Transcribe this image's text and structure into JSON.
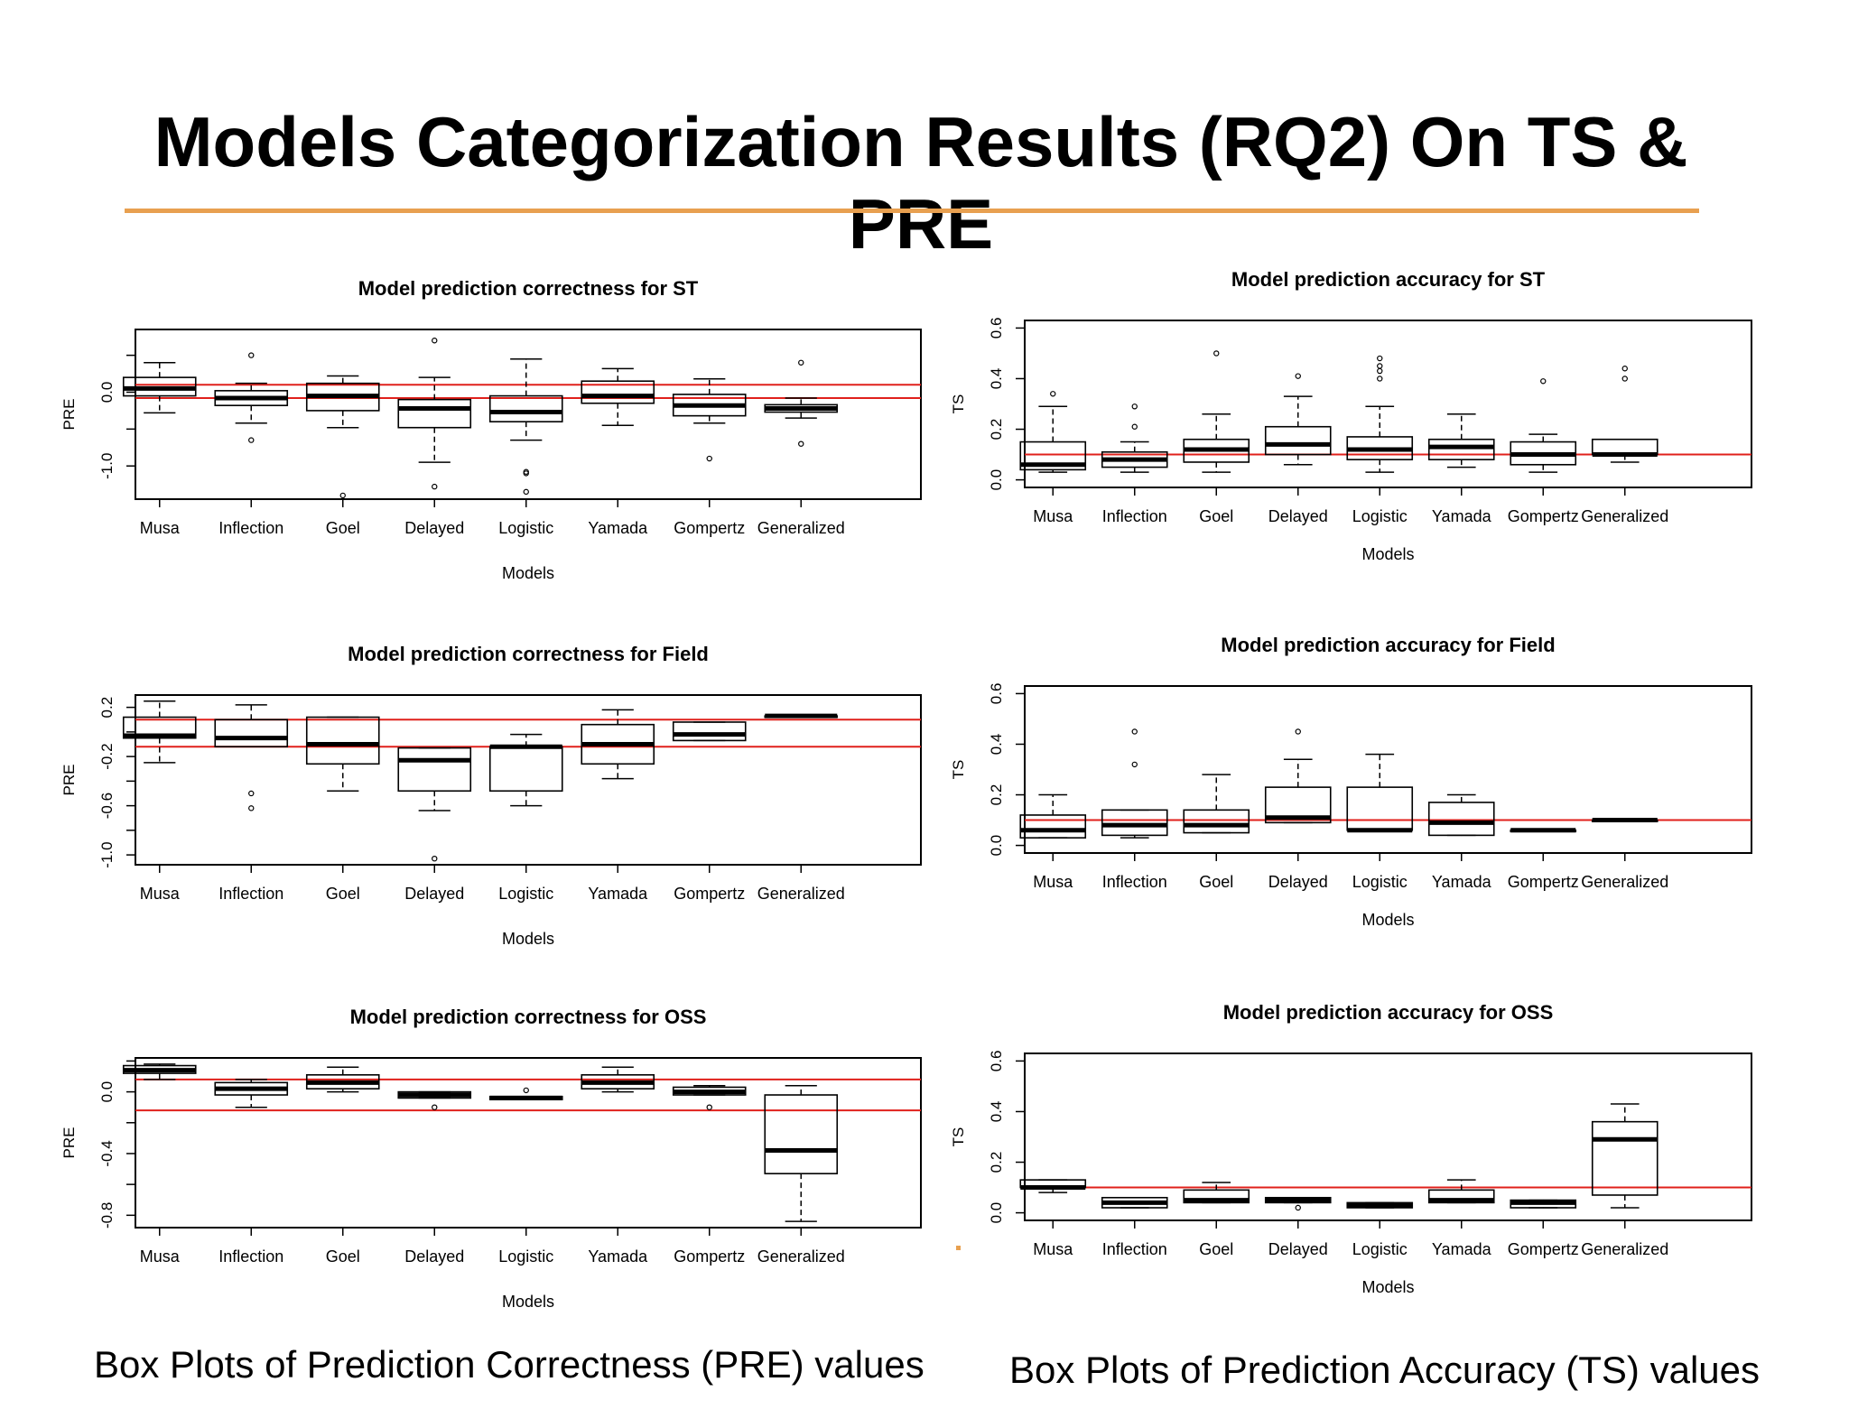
{
  "slide_title": "Models Categorization Results (RQ2) On TS & PRE",
  "captions": {
    "left": "Box Plots of Prediction Correctness (PRE) values",
    "right": "Box Plots of Prediction Accuracy (TS) values"
  },
  "colors": {
    "title_rule": "#E8A050",
    "reference_lines": "#E0201B",
    "boxes": "#000000"
  },
  "chart_data": [
    {
      "type": "boxplot",
      "title": "Model prediction correctness for ST",
      "xlabel": "Models",
      "ylabel": "PRE",
      "ylim": [
        -1.45,
        0.85
      ],
      "yticks": [
        -1.0,
        0.0
      ],
      "ytick_labels": [
        "-1.0",
        "0.0"
      ],
      "extra_ticks": [
        -0.5,
        0.5
      ],
      "hlines": [
        0.1,
        -0.08
      ],
      "categories": [
        "Musa",
        "Inflection",
        "Goel",
        "Delayed",
        "Logistic",
        "Yamada",
        "Gompertz",
        "Generalized"
      ],
      "boxes": [
        {
          "whislo": -0.28,
          "q1": -0.05,
          "med": 0.05,
          "q3": 0.2,
          "whishi": 0.4,
          "outliers": []
        },
        {
          "whislo": -0.42,
          "q1": -0.18,
          "med": -0.08,
          "q3": 0.02,
          "whishi": 0.12,
          "outliers": [
            0.5,
            -0.65
          ]
        },
        {
          "whislo": -0.48,
          "q1": -0.25,
          "med": -0.05,
          "q3": 0.12,
          "whishi": 0.22,
          "outliers": [
            -1.4
          ]
        },
        {
          "whislo": -0.95,
          "q1": -0.48,
          "med": -0.22,
          "q3": -0.1,
          "whishi": 0.2,
          "outliers": [
            0.7,
            -1.28
          ]
        },
        {
          "whislo": -0.65,
          "q1": -0.4,
          "med": -0.27,
          "q3": -0.05,
          "whishi": 0.45,
          "outliers": [
            -1.08,
            -1.1,
            -1.35
          ]
        },
        {
          "whislo": -0.45,
          "q1": -0.15,
          "med": -0.05,
          "q3": 0.15,
          "whishi": 0.32,
          "outliers": []
        },
        {
          "whislo": -0.42,
          "q1": -0.32,
          "med": -0.18,
          "q3": -0.03,
          "whishi": 0.18,
          "outliers": [
            -0.9
          ]
        },
        {
          "whislo": -0.35,
          "q1": -0.27,
          "med": -0.22,
          "q3": -0.17,
          "whishi": -0.08,
          "outliers": [
            0.4,
            -0.7
          ]
        }
      ]
    },
    {
      "type": "boxplot",
      "title": "Model prediction correctness for Field",
      "xlabel": "Models",
      "ylabel": "PRE",
      "ylim": [
        -1.08,
        0.3
      ],
      "yticks": [
        -1.0,
        -0.6,
        -0.2,
        0.2
      ],
      "ytick_labels": [
        "-1.0",
        "-0.6",
        "-0.2",
        "0.2"
      ],
      "extra_ticks": [
        -0.8,
        -0.4,
        0.0
      ],
      "hlines": [
        0.1,
        -0.12
      ],
      "categories": [
        "Musa",
        "Inflection",
        "Goel",
        "Delayed",
        "Logistic",
        "Yamada",
        "Gompertz",
        "Generalized"
      ],
      "boxes": [
        {
          "whislo": -0.25,
          "q1": -0.05,
          "med": -0.03,
          "q3": 0.12,
          "whishi": 0.25,
          "outliers": []
        },
        {
          "whislo": -0.12,
          "q1": -0.12,
          "med": -0.05,
          "q3": 0.1,
          "whishi": 0.22,
          "outliers": [
            -0.5,
            -0.62
          ]
        },
        {
          "whislo": -0.48,
          "q1": -0.26,
          "med": -0.1,
          "q3": 0.12,
          "whishi": 0.12,
          "outliers": []
        },
        {
          "whislo": -0.64,
          "q1": -0.48,
          "med": -0.23,
          "q3": -0.13,
          "whishi": -0.13,
          "outliers": [
            -1.03
          ]
        },
        {
          "whislo": -0.6,
          "q1": -0.48,
          "med": -0.12,
          "q3": -0.12,
          "whishi": -0.02,
          "outliers": []
        },
        {
          "whislo": -0.38,
          "q1": -0.26,
          "med": -0.1,
          "q3": 0.06,
          "whishi": 0.18,
          "outliers": []
        },
        {
          "whislo": -0.07,
          "q1": -0.07,
          "med": -0.02,
          "q3": 0.08,
          "whishi": 0.08,
          "outliers": []
        },
        {
          "whislo": 0.13,
          "q1": 0.13,
          "med": 0.13,
          "q3": 0.13,
          "whishi": 0.13,
          "outliers": []
        }
      ]
    },
    {
      "type": "boxplot",
      "title": "Model prediction correctness for OSS",
      "xlabel": "Models",
      "ylabel": "PRE",
      "ylim": [
        -0.88,
        0.22
      ],
      "yticks": [
        -0.8,
        -0.4,
        0.0
      ],
      "ytick_labels": [
        "-0.8",
        "-0.4",
        "0.0"
      ],
      "extra_ticks": [
        -0.6,
        -0.2,
        0.2
      ],
      "hlines": [
        0.08,
        -0.12
      ],
      "categories": [
        "Musa",
        "Inflection",
        "Goel",
        "Delayed",
        "Logistic",
        "Yamada",
        "Gompertz",
        "Generalized"
      ],
      "boxes": [
        {
          "whislo": 0.08,
          "q1": 0.12,
          "med": 0.14,
          "q3": 0.17,
          "whishi": 0.18,
          "outliers": []
        },
        {
          "whislo": -0.1,
          "q1": -0.02,
          "med": 0.02,
          "q3": 0.06,
          "whishi": 0.08,
          "outliers": []
        },
        {
          "whislo": 0.0,
          "q1": 0.02,
          "med": 0.06,
          "q3": 0.11,
          "whishi": 0.16,
          "outliers": []
        },
        {
          "whislo": -0.04,
          "q1": -0.04,
          "med": -0.02,
          "q3": 0.0,
          "whishi": 0.0,
          "outliers": [
            -0.1
          ]
        },
        {
          "whislo": -0.05,
          "q1": -0.05,
          "med": -0.04,
          "q3": -0.03,
          "whishi": -0.03,
          "outliers": [
            0.01
          ]
        },
        {
          "whislo": 0.0,
          "q1": 0.02,
          "med": 0.06,
          "q3": 0.11,
          "whishi": 0.16,
          "outliers": []
        },
        {
          "whislo": -0.02,
          "q1": -0.02,
          "med": 0.0,
          "q3": 0.03,
          "whishi": 0.04,
          "outliers": [
            -0.1
          ]
        },
        {
          "whislo": -0.84,
          "q1": -0.53,
          "med": -0.38,
          "q3": -0.02,
          "whishi": 0.04,
          "outliers": []
        }
      ]
    },
    {
      "type": "boxplot",
      "title": "Model prediction accuracy for ST",
      "xlabel": "Models",
      "ylabel": "TS",
      "ylim": [
        -0.03,
        0.63
      ],
      "yticks": [
        0.0,
        0.2,
        0.4,
        0.6
      ],
      "ytick_labels": [
        "0.0",
        "0.2",
        "0.4",
        "0.6"
      ],
      "extra_ticks": [],
      "hlines": [
        0.1
      ],
      "categories": [
        "Musa",
        "Inflection",
        "Goel",
        "Delayed",
        "Logistic",
        "Yamada",
        "Gompertz",
        "Generalized"
      ],
      "boxes": [
        {
          "whislo": 0.03,
          "q1": 0.04,
          "med": 0.06,
          "q3": 0.15,
          "whishi": 0.29,
          "outliers": [
            0.34
          ]
        },
        {
          "whislo": 0.03,
          "q1": 0.05,
          "med": 0.08,
          "q3": 0.11,
          "whishi": 0.15,
          "outliers": [
            0.21,
            0.29
          ]
        },
        {
          "whislo": 0.03,
          "q1": 0.07,
          "med": 0.12,
          "q3": 0.16,
          "whishi": 0.26,
          "outliers": [
            0.5
          ]
        },
        {
          "whislo": 0.06,
          "q1": 0.1,
          "med": 0.14,
          "q3": 0.21,
          "whishi": 0.33,
          "outliers": [
            0.41
          ]
        },
        {
          "whislo": 0.03,
          "q1": 0.08,
          "med": 0.12,
          "q3": 0.17,
          "whishi": 0.29,
          "outliers": [
            0.4,
            0.43,
            0.45,
            0.48
          ]
        },
        {
          "whislo": 0.05,
          "q1": 0.08,
          "med": 0.13,
          "q3": 0.16,
          "whishi": 0.26,
          "outliers": []
        },
        {
          "whislo": 0.03,
          "q1": 0.06,
          "med": 0.1,
          "q3": 0.15,
          "whishi": 0.18,
          "outliers": [
            0.39
          ]
        },
        {
          "whislo": 0.07,
          "q1": 0.1,
          "med": 0.1,
          "q3": 0.16,
          "whishi": 0.16,
          "outliers": [
            0.4,
            0.44
          ]
        }
      ]
    },
    {
      "type": "boxplot",
      "title": "Model prediction accuracy for Field",
      "xlabel": "Models",
      "ylabel": "TS",
      "ylim": [
        -0.03,
        0.63
      ],
      "yticks": [
        0.0,
        0.2,
        0.4,
        0.6
      ],
      "ytick_labels": [
        "0.0",
        "0.2",
        "0.4",
        "0.6"
      ],
      "extra_ticks": [],
      "hlines": [
        0.1
      ],
      "categories": [
        "Musa",
        "Inflection",
        "Goel",
        "Delayed",
        "Logistic",
        "Yamada",
        "Gompertz",
        "Generalized"
      ],
      "boxes": [
        {
          "whislo": 0.03,
          "q1": 0.03,
          "med": 0.06,
          "q3": 0.12,
          "whishi": 0.2,
          "outliers": []
        },
        {
          "whislo": 0.03,
          "q1": 0.04,
          "med": 0.08,
          "q3": 0.14,
          "whishi": 0.14,
          "outliers": [
            0.32,
            0.45
          ]
        },
        {
          "whislo": 0.05,
          "q1": 0.05,
          "med": 0.08,
          "q3": 0.14,
          "whishi": 0.28,
          "outliers": []
        },
        {
          "whislo": 0.09,
          "q1": 0.09,
          "med": 0.11,
          "q3": 0.23,
          "whishi": 0.34,
          "outliers": [
            0.45
          ]
        },
        {
          "whislo": 0.06,
          "q1": 0.06,
          "med": 0.06,
          "q3": 0.23,
          "whishi": 0.36,
          "outliers": []
        },
        {
          "whislo": 0.04,
          "q1": 0.04,
          "med": 0.09,
          "q3": 0.17,
          "whishi": 0.2,
          "outliers": []
        },
        {
          "whislo": 0.06,
          "q1": 0.06,
          "med": 0.06,
          "q3": 0.06,
          "whishi": 0.06,
          "outliers": []
        },
        {
          "whislo": 0.1,
          "q1": 0.1,
          "med": 0.1,
          "q3": 0.1,
          "whishi": 0.1,
          "outliers": []
        }
      ]
    },
    {
      "type": "boxplot",
      "title": "Model prediction accuracy for OSS",
      "xlabel": "Models",
      "ylabel": "TS",
      "ylim": [
        -0.03,
        0.63
      ],
      "yticks": [
        0.0,
        0.2,
        0.4,
        0.6
      ],
      "ytick_labels": [
        "0.0",
        "0.2",
        "0.4",
        "0.6"
      ],
      "extra_ticks": [],
      "hlines": [
        0.1
      ],
      "categories": [
        "Musa",
        "Inflection",
        "Goel",
        "Delayed",
        "Logistic",
        "Yamada",
        "Gompertz",
        "Generalized"
      ],
      "boxes": [
        {
          "whislo": 0.08,
          "q1": 0.1,
          "med": 0.1,
          "q3": 0.13,
          "whishi": 0.13,
          "outliers": []
        },
        {
          "whislo": 0.02,
          "q1": 0.02,
          "med": 0.04,
          "q3": 0.06,
          "whishi": 0.06,
          "outliers": []
        },
        {
          "whislo": 0.04,
          "q1": 0.04,
          "med": 0.05,
          "q3": 0.09,
          "whishi": 0.12,
          "outliers": []
        },
        {
          "whislo": 0.04,
          "q1": 0.04,
          "med": 0.05,
          "q3": 0.06,
          "whishi": 0.06,
          "outliers": [
            0.02
          ]
        },
        {
          "whislo": 0.02,
          "q1": 0.02,
          "med": 0.03,
          "q3": 0.04,
          "whishi": 0.04,
          "outliers": []
        },
        {
          "whislo": 0.04,
          "q1": 0.04,
          "med": 0.05,
          "q3": 0.09,
          "whishi": 0.13,
          "outliers": []
        },
        {
          "whislo": 0.02,
          "q1": 0.02,
          "med": 0.04,
          "q3": 0.05,
          "whishi": 0.05,
          "outliers": []
        },
        {
          "whislo": 0.02,
          "q1": 0.07,
          "med": 0.29,
          "q3": 0.36,
          "whishi": 0.43,
          "outliers": []
        }
      ]
    }
  ]
}
